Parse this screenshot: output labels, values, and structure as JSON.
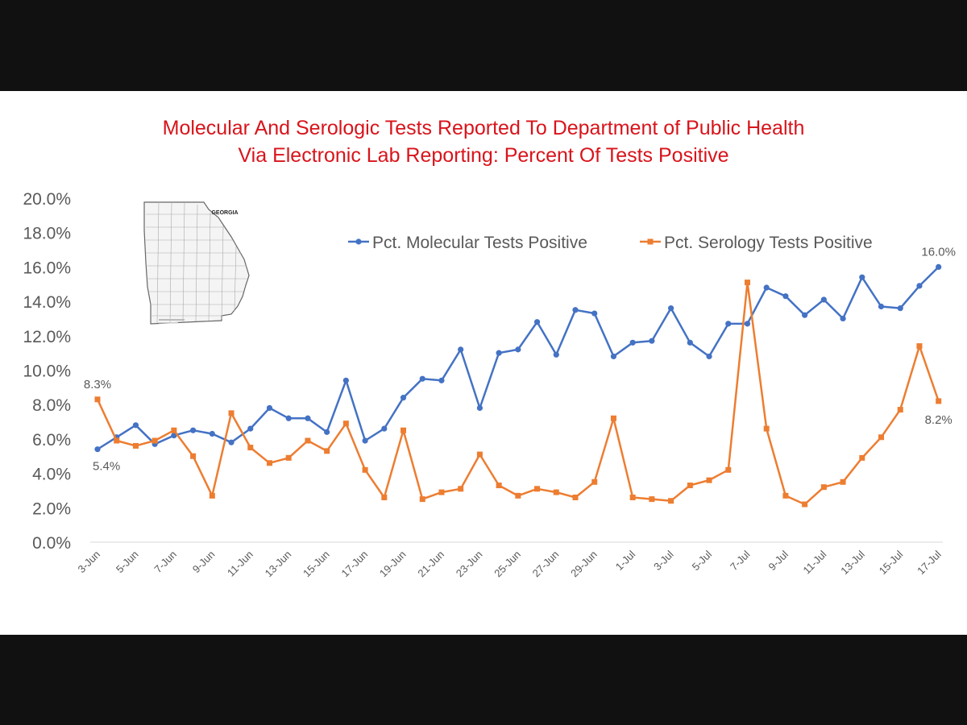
{
  "chart_data": {
    "type": "line",
    "title": [
      "Molecular And Serologic Tests Reported To Department of Public Health",
      "Via Electronic Lab Reporting: Percent Of Tests Positive"
    ],
    "xlabel": "",
    "ylabel": "",
    "ylim": [
      0,
      20
    ],
    "y_ticks": [
      "0.0%",
      "2.0%",
      "4.0%",
      "6.0%",
      "8.0%",
      "10.0%",
      "12.0%",
      "14.0%",
      "16.0%",
      "18.0%",
      "20.0%"
    ],
    "x_tick_labels": [
      "3-Jun",
      "5-Jun",
      "7-Jun",
      "9-Jun",
      "11-Jun",
      "13-Jun",
      "15-Jun",
      "17-Jun",
      "19-Jun",
      "21-Jun",
      "23-Jun",
      "25-Jun",
      "27-Jun",
      "29-Jun",
      "1-Jul",
      "3-Jul",
      "5-Jul",
      "7-Jul",
      "9-Jul",
      "11-Jul",
      "13-Jul",
      "15-Jul",
      "17-Jul"
    ],
    "x": [
      "3-Jun",
      "4-Jun",
      "5-Jun",
      "6-Jun",
      "7-Jun",
      "8-Jun",
      "9-Jun",
      "10-Jun",
      "11-Jun",
      "12-Jun",
      "13-Jun",
      "14-Jun",
      "15-Jun",
      "16-Jun",
      "17-Jun",
      "18-Jun",
      "19-Jun",
      "20-Jun",
      "21-Jun",
      "22-Jun",
      "23-Jun",
      "24-Jun",
      "25-Jun",
      "26-Jun",
      "27-Jun",
      "28-Jun",
      "29-Jun",
      "30-Jun",
      "1-Jul",
      "2-Jul",
      "3-Jul",
      "4-Jul",
      "5-Jul",
      "6-Jul",
      "7-Jul",
      "8-Jul",
      "9-Jul",
      "10-Jul",
      "11-Jul",
      "12-Jul",
      "13-Jul",
      "14-Jul",
      "15-Jul",
      "16-Jul",
      "17-Jul"
    ],
    "legend_position": "top-right",
    "grid": false,
    "series": [
      {
        "name": "Pct. Molecular Tests Positive",
        "color": "#4472c4",
        "marker": "circle",
        "values": [
          5.4,
          6.1,
          6.8,
          5.7,
          6.2,
          6.5,
          6.3,
          5.8,
          6.6,
          7.8,
          7.2,
          7.2,
          6.4,
          9.4,
          5.9,
          6.6,
          8.4,
          9.5,
          9.4,
          11.2,
          7.8,
          11.0,
          11.2,
          12.8,
          10.9,
          13.5,
          13.3,
          10.8,
          11.6,
          11.7,
          13.6,
          11.6,
          10.8,
          12.7,
          12.7,
          14.8,
          14.3,
          13.2,
          14.1,
          13.0,
          15.4,
          13.7,
          13.6,
          14.9,
          16.0
        ],
        "labels": [
          {
            "x": "3-Jun",
            "text": "5.4%"
          },
          {
            "x": "17-Jul",
            "text": "16.0%"
          }
        ]
      },
      {
        "name": "Pct. Serology Tests Positive",
        "color": "#ed7d31",
        "marker": "square",
        "values": [
          8.3,
          5.9,
          5.6,
          5.9,
          6.5,
          5.0,
          2.7,
          7.5,
          5.5,
          4.6,
          4.9,
          5.9,
          5.3,
          6.9,
          4.2,
          2.6,
          6.5,
          2.5,
          2.9,
          3.1,
          5.1,
          3.3,
          2.7,
          3.1,
          2.9,
          2.6,
          3.5,
          7.2,
          2.6,
          2.5,
          2.4,
          3.3,
          3.6,
          4.2,
          15.1,
          6.6,
          2.7,
          2.2,
          3.2,
          3.5,
          4.9,
          6.1,
          7.7,
          11.4,
          8.2
        ],
        "labels": [
          {
            "x": "3-Jun",
            "text": "8.3%"
          },
          {
            "x": "17-Jul",
            "text": "8.2%"
          }
        ]
      }
    ]
  },
  "inset_map": {
    "icon": "georgia-map-icon",
    "label": "GEORGIA"
  }
}
